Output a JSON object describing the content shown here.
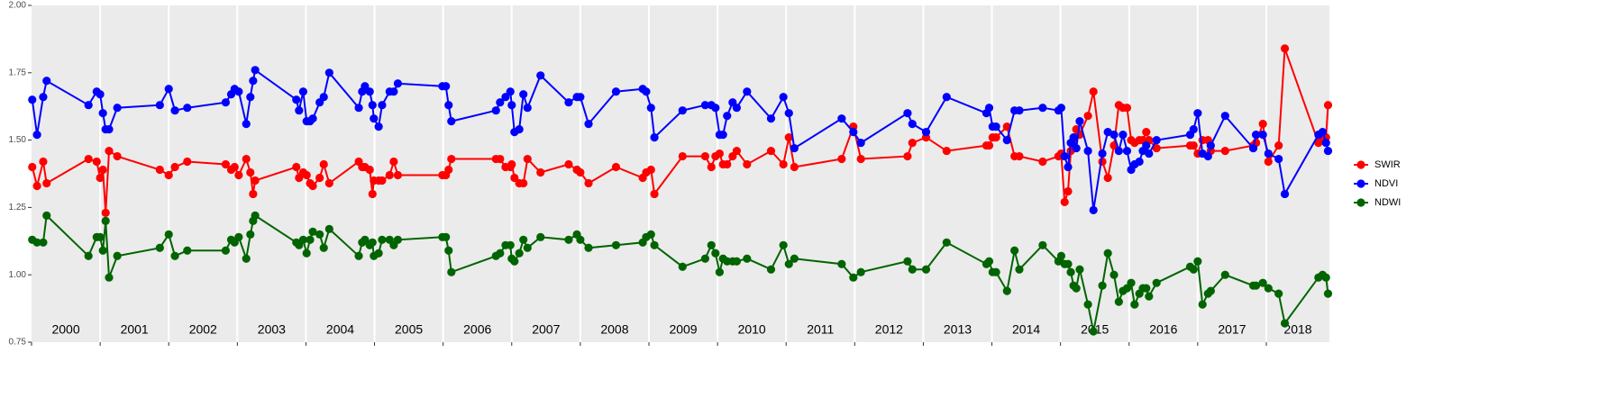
{
  "chart_data": {
    "type": "line",
    "x": [
      2000.01,
      2000.08,
      2000.17,
      2000.22,
      2000.83,
      2000.95,
      2001.0,
      2001.04,
      2001.08,
      2001.13,
      2001.25,
      2001.87,
      2002.0,
      2002.09,
      2002.27,
      2002.83,
      2002.91,
      2002.96,
      2003.02,
      2003.13,
      2003.19,
      2003.23,
      2003.26,
      2003.86,
      2003.9,
      2003.96,
      2004.01,
      2004.06,
      2004.1,
      2004.2,
      2004.26,
      2004.34,
      2004.77,
      2004.82,
      2004.86,
      2004.93,
      2004.97,
      2004.99,
      2005.06,
      2005.11,
      2005.22,
      2005.28,
      2005.34,
      2005.99,
      2006.04,
      2006.08,
      2006.12,
      2006.77,
      2006.83,
      2006.91,
      2006.98,
      2007.0,
      2007.04,
      2007.11,
      2007.17,
      2007.23,
      2007.42,
      2007.83,
      2007.95,
      2008.0,
      2008.12,
      2008.52,
      2008.91,
      2008.96,
      2009.03,
      2009.08,
      2009.49,
      2009.82,
      2009.91,
      2009.97,
      2010.03,
      2010.08,
      2010.14,
      2010.22,
      2010.28,
      2010.43,
      2010.78,
      2010.96,
      2011.04,
      2011.12,
      2011.81,
      2011.98,
      2012.09,
      2012.77,
      2012.84,
      2013.04,
      2013.34,
      2013.92,
      2013.96,
      2014.01,
      2014.06,
      2014.22,
      2014.33,
      2014.4,
      2014.74,
      2014.97,
      2015.01,
      2015.06,
      2015.11,
      2015.15,
      2015.19,
      2015.23,
      2015.28,
      2015.4,
      2015.48,
      2015.61,
      2015.69,
      2015.78,
      2015.85,
      2015.91,
      2015.97,
      2016.03,
      2016.08,
      2016.15,
      2016.2,
      2016.25,
      2016.29,
      2016.4,
      2016.89,
      2016.94,
      2017.0,
      2017.07,
      2017.15,
      2017.19,
      2017.4,
      2017.81,
      2017.85,
      2017.95,
      2018.03,
      2018.18,
      2018.27,
      2018.76,
      2018.82,
      2018.87,
      2018.9
    ],
    "series": [
      {
        "name": "SWIR",
        "color": "#ff0000",
        "values": [
          1.4,
          1.33,
          1.42,
          1.34,
          1.43,
          1.42,
          1.36,
          1.39,
          1.23,
          1.46,
          1.44,
          1.39,
          1.37,
          1.4,
          1.42,
          1.41,
          1.39,
          1.4,
          1.37,
          1.43,
          1.38,
          1.3,
          1.35,
          1.4,
          1.36,
          1.38,
          1.37,
          1.34,
          1.33,
          1.36,
          1.41,
          1.34,
          1.42,
          1.4,
          1.4,
          1.39,
          1.3,
          1.35,
          1.35,
          1.35,
          1.37,
          1.42,
          1.37,
          1.37,
          1.37,
          1.39,
          1.43,
          1.43,
          1.43,
          1.4,
          1.4,
          1.41,
          1.36,
          1.34,
          1.34,
          1.43,
          1.38,
          1.41,
          1.39,
          1.38,
          1.34,
          1.4,
          1.36,
          1.38,
          1.39,
          1.3,
          1.44,
          1.44,
          1.4,
          1.44,
          1.45,
          1.41,
          1.41,
          1.44,
          1.46,
          1.41,
          1.46,
          1.41,
          1.51,
          1.4,
          1.43,
          1.55,
          1.43,
          1.44,
          1.49,
          1.51,
          1.46,
          1.48,
          1.48,
          1.51,
          1.51,
          1.55,
          1.44,
          1.44,
          1.42,
          1.44,
          1.45,
          1.27,
          1.31,
          1.46,
          1.49,
          1.54,
          1.52,
          1.59,
          1.68,
          1.42,
          1.36,
          1.48,
          1.63,
          1.62,
          1.62,
          1.5,
          1.49,
          1.5,
          1.5,
          1.53,
          1.5,
          1.47,
          1.48,
          1.48,
          1.45,
          1.5,
          1.5,
          1.46,
          1.46,
          1.48,
          1.49,
          1.56,
          1.42,
          1.48,
          1.84,
          1.49,
          1.51,
          1.51,
          1.63
        ]
      },
      {
        "name": "NDVI",
        "color": "#0000ff",
        "values": [
          1.65,
          1.52,
          1.66,
          1.72,
          1.63,
          1.68,
          1.67,
          1.6,
          1.54,
          1.54,
          1.62,
          1.63,
          1.69,
          1.61,
          1.62,
          1.64,
          1.67,
          1.69,
          1.68,
          1.56,
          1.66,
          1.72,
          1.76,
          1.65,
          1.61,
          1.68,
          1.57,
          1.57,
          1.58,
          1.64,
          1.66,
          1.75,
          1.62,
          1.68,
          1.7,
          1.68,
          1.63,
          1.58,
          1.55,
          1.63,
          1.68,
          1.68,
          1.71,
          1.7,
          1.7,
          1.63,
          1.57,
          1.61,
          1.64,
          1.66,
          1.68,
          1.63,
          1.53,
          1.54,
          1.67,
          1.62,
          1.74,
          1.64,
          1.66,
          1.66,
          1.56,
          1.68,
          1.69,
          1.68,
          1.62,
          1.51,
          1.61,
          1.63,
          1.63,
          1.62,
          1.52,
          1.52,
          1.59,
          1.64,
          1.62,
          1.68,
          1.58,
          1.66,
          1.6,
          1.47,
          1.58,
          1.53,
          1.49,
          1.6,
          1.56,
          1.53,
          1.66,
          1.6,
          1.62,
          1.55,
          1.55,
          1.5,
          1.61,
          1.61,
          1.62,
          1.61,
          1.62,
          1.44,
          1.4,
          1.49,
          1.51,
          1.47,
          1.57,
          1.46,
          1.24,
          1.45,
          1.53,
          1.52,
          1.46,
          1.52,
          1.46,
          1.39,
          1.41,
          1.42,
          1.46,
          1.48,
          1.45,
          1.5,
          1.52,
          1.54,
          1.6,
          1.45,
          1.44,
          1.48,
          1.59,
          1.47,
          1.52,
          1.52,
          1.45,
          1.43,
          1.3,
          1.52,
          1.53,
          1.49,
          1.46
        ]
      },
      {
        "name": "NDWI",
        "color": "#006400",
        "values": [
          1.13,
          1.12,
          1.12,
          1.22,
          1.07,
          1.14,
          1.14,
          1.09,
          1.2,
          0.99,
          1.07,
          1.1,
          1.15,
          1.07,
          1.09,
          1.09,
          1.13,
          1.12,
          1.14,
          1.06,
          1.15,
          1.2,
          1.22,
          1.12,
          1.11,
          1.13,
          1.08,
          1.13,
          1.16,
          1.15,
          1.1,
          1.17,
          1.07,
          1.12,
          1.13,
          1.11,
          1.12,
          1.07,
          1.08,
          1.13,
          1.13,
          1.11,
          1.13,
          1.14,
          1.14,
          1.09,
          1.01,
          1.07,
          1.08,
          1.11,
          1.11,
          1.06,
          1.05,
          1.08,
          1.13,
          1.1,
          1.14,
          1.13,
          1.15,
          1.13,
          1.1,
          1.11,
          1.12,
          1.14,
          1.15,
          1.11,
          1.03,
          1.06,
          1.11,
          1.08,
          1.01,
          1.06,
          1.05,
          1.05,
          1.05,
          1.06,
          1.02,
          1.11,
          1.04,
          1.06,
          1.04,
          0.99,
          1.01,
          1.05,
          1.02,
          1.02,
          1.12,
          1.04,
          1.05,
          1.01,
          1.01,
          0.94,
          1.09,
          1.02,
          1.11,
          1.05,
          1.07,
          1.04,
          1.04,
          1.01,
          0.96,
          0.95,
          1.02,
          0.89,
          0.79,
          0.96,
          1.08,
          1.0,
          0.9,
          0.94,
          0.95,
          0.97,
          0.89,
          0.93,
          0.95,
          0.95,
          0.92,
          0.97,
          1.03,
          1.02,
          1.05,
          0.89,
          0.93,
          0.94,
          1.0,
          0.96,
          0.96,
          0.97,
          0.95,
          0.93,
          0.82,
          0.99,
          1.0,
          0.99,
          0.93
        ]
      }
    ],
    "xlim": [
      2000,
      2018.92
    ],
    "xticks": [
      {
        "value": 2000,
        "label": "2000"
      },
      {
        "value": 2001,
        "label": "2001"
      },
      {
        "value": 2002,
        "label": "2002"
      },
      {
        "value": 2003,
        "label": "2003"
      },
      {
        "value": 2004,
        "label": "2004"
      },
      {
        "value": 2005,
        "label": "2005"
      },
      {
        "value": 2006,
        "label": "2006"
      },
      {
        "value": 2007,
        "label": "2007"
      },
      {
        "value": 2008,
        "label": "2008"
      },
      {
        "value": 2009,
        "label": "2009"
      },
      {
        "value": 2010,
        "label": "2010"
      },
      {
        "value": 2011,
        "label": "2011"
      },
      {
        "value": 2012,
        "label": "2012"
      },
      {
        "value": 2013,
        "label": "2013"
      },
      {
        "value": 2014,
        "label": "2014"
      },
      {
        "value": 2015,
        "label": "2015"
      },
      {
        "value": 2016,
        "label": "2016"
      },
      {
        "value": 2017,
        "label": "2017"
      },
      {
        "value": 2018,
        "label": "2018"
      }
    ],
    "ylim": [
      0.75,
      2
    ],
    "yticks": [
      0.75,
      {
        "value": 1,
        "label": "1.00"
      },
      1.25,
      {
        "value": 1.5,
        "label": "1.50"
      },
      1.75,
      {
        "value": 2,
        "label": "2.00"
      }
    ],
    "grid": "x",
    "legend": "right"
  }
}
